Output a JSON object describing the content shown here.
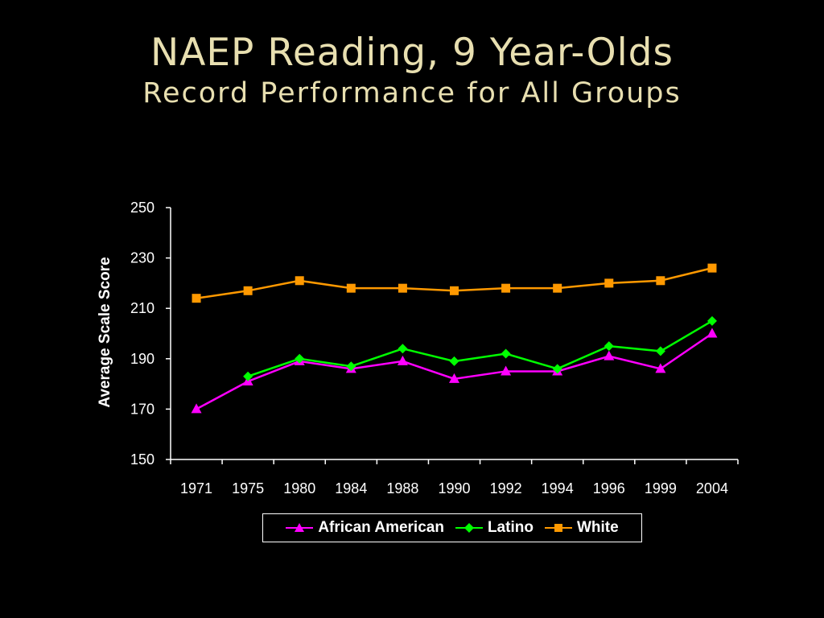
{
  "slide": {
    "title": "NAEP Reading, 9 Year-Olds",
    "subtitle": "Record Performance for All Groups"
  },
  "chart_data": {
    "type": "line",
    "categories": [
      "1971",
      "1975",
      "1980",
      "1984",
      "1988",
      "1990",
      "1992",
      "1994",
      "1996",
      "1999",
      "2004"
    ],
    "ylabel": "Average Scale Score",
    "xlabel": "",
    "ylim": [
      150,
      250
    ],
    "yticks": [
      150,
      170,
      190,
      210,
      230,
      250
    ],
    "grid": false,
    "legend_position": "bottom",
    "series": [
      {
        "name": "African American",
        "color": "#ff00ff",
        "marker": "triangle",
        "values": [
          170,
          181,
          189,
          186,
          189,
          182,
          185,
          185,
          191,
          186,
          200
        ]
      },
      {
        "name": "Latino",
        "color": "#00ff00",
        "marker": "diamond",
        "values": [
          null,
          183,
          190,
          187,
          194,
          189,
          192,
          186,
          195,
          193,
          205
        ]
      },
      {
        "name": "White",
        "color": "#ff9900",
        "marker": "square",
        "values": [
          214,
          217,
          221,
          218,
          218,
          217,
          218,
          218,
          220,
          221,
          226
        ]
      }
    ]
  }
}
